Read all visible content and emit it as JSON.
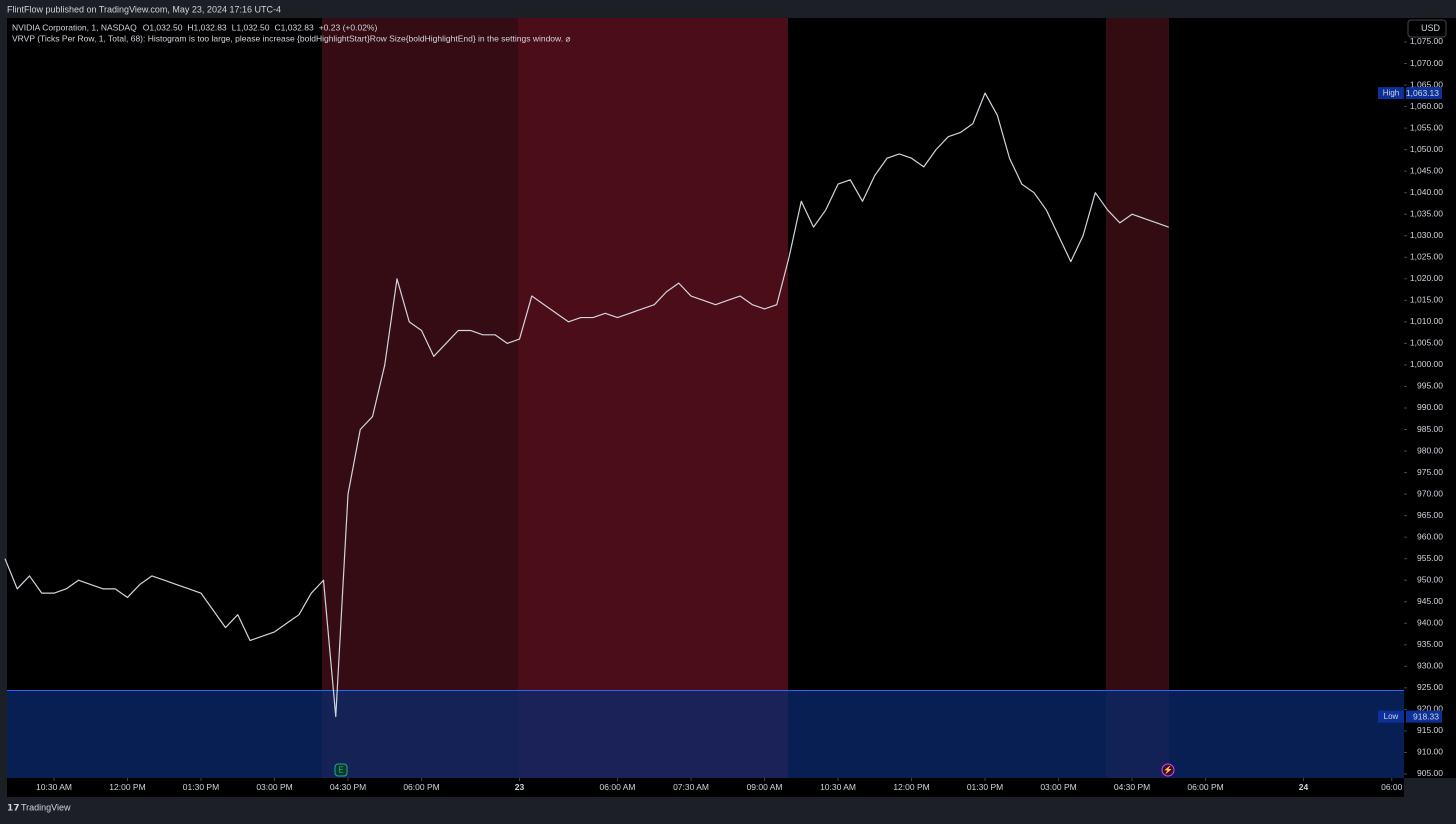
{
  "header": {
    "publisher": "FlintFlow published on TradingView.com, May 23, 2024 17:16 UTC-4"
  },
  "legend": {
    "symbol": "NVIDIA Corporation, 1, NASDAQ",
    "ohlc": [
      "O1,032.50",
      "H1,032.83",
      "L1,032.50",
      "C1,032.83",
      "+0.23 (+0.02%)"
    ],
    "indicator": "VRVP (Ticks Per Row, 1, Total, 68): Histogram is too large, please increase {boldHighlightStart}Row Size{boldHighlightEnd} in the settings window.  ⌀"
  },
  "currency": "USD",
  "footer": {
    "brand": "TradingView"
  },
  "chart_data": {
    "type": "line",
    "series": [
      {
        "name": "NVIDIA Corporation",
        "color": "#d1d4dc",
        "values": [
          955,
          948,
          951,
          947,
          947,
          948,
          950,
          949,
          948,
          948,
          946,
          949,
          951,
          950,
          949,
          948,
          947,
          943,
          939,
          942,
          936,
          937,
          938,
          940,
          942,
          947,
          950,
          918.33,
          970,
          985,
          988,
          1000,
          1020,
          1010,
          1008,
          1002,
          1005,
          1008,
          1008,
          1007,
          1007,
          1005,
          1006,
          1016,
          1014,
          1012,
          1010,
          1011,
          1011,
          1012,
          1011,
          1012,
          1013,
          1014,
          1017,
          1019,
          1016,
          1015,
          1014,
          1015,
          1016,
          1014,
          1013,
          1014,
          1025,
          1038,
          1032,
          1036,
          1042,
          1043,
          1038,
          1044,
          1048,
          1049,
          1048,
          1046,
          1050,
          1053,
          1054,
          1056,
          1063.13,
          1058,
          1048,
          1042,
          1040,
          1036,
          1030,
          1024,
          1030,
          1040,
          1036,
          1033,
          1035,
          1034,
          1033,
          1032
        ]
      }
    ],
    "xlim": [
      0,
      114.2
    ],
    "xticks": [
      {
        "value": 4,
        "label": "10:30 AM"
      },
      {
        "value": 10,
        "label": "12:00 PM"
      },
      {
        "value": 16,
        "label": "01:30 PM"
      },
      {
        "value": 22,
        "label": "03:00 PM"
      },
      {
        "value": 28,
        "label": "04:30 PM"
      },
      {
        "value": 34,
        "label": "06:00 PM"
      },
      {
        "value": 42,
        "label": "23"
      },
      {
        "value": 50,
        "label": "06:00 AM"
      },
      {
        "value": 56,
        "label": "07:30 AM"
      },
      {
        "value": 62,
        "label": "09:00 AM"
      },
      {
        "value": 68,
        "label": "10:30 AM"
      },
      {
        "value": 74,
        "label": "12:00 PM"
      },
      {
        "value": 80,
        "label": "01:30 PM"
      },
      {
        "value": 86,
        "label": "03:00 PM"
      },
      {
        "value": 92,
        "label": "04:30 PM"
      },
      {
        "value": 98,
        "label": "06:00 PM"
      },
      {
        "value": 106,
        "label": "24"
      },
      {
        "value": 113.2,
        "label": "06:00"
      }
    ],
    "ylim": [
      904.07,
      1080.57
    ],
    "yticks": [
      {
        "value": 905,
        "label": "905.00"
      },
      {
        "value": 910,
        "label": "910.00"
      },
      {
        "value": 915,
        "label": "915.00"
      },
      {
        "value": 920,
        "label": "920.00"
      },
      {
        "value": 925,
        "label": "925.00"
      },
      {
        "value": 930,
        "label": "930.00"
      },
      {
        "value": 935,
        "label": "935.00"
      },
      {
        "value": 940,
        "label": "940.00"
      },
      {
        "value": 945,
        "label": "945.00"
      },
      {
        "value": 950,
        "label": "950.00"
      },
      {
        "value": 955,
        "label": "955.00"
      },
      {
        "value": 960,
        "label": "960.00"
      },
      {
        "value": 965,
        "label": "965.00"
      },
      {
        "value": 970,
        "label": "970.00"
      },
      {
        "value": 975,
        "label": "975.00"
      },
      {
        "value": 980,
        "label": "980.00"
      },
      {
        "value": 985,
        "label": "985.00"
      },
      {
        "value": 990,
        "label": "990.00"
      },
      {
        "value": 995,
        "label": "995.00"
      },
      {
        "value": 1000,
        "label": "1,000.00"
      },
      {
        "value": 1005,
        "label": "1,005.00"
      },
      {
        "value": 1010,
        "label": "1,010.00"
      },
      {
        "value": 1015,
        "label": "1,015.00"
      },
      {
        "value": 1020,
        "label": "1,020.00"
      },
      {
        "value": 1025,
        "label": "1,025.00"
      },
      {
        "value": 1030,
        "label": "1,030.00"
      },
      {
        "value": 1035,
        "label": "1,035.00"
      },
      {
        "value": 1040,
        "label": "1,040.00"
      },
      {
        "value": 1045,
        "label": "1,045.00"
      },
      {
        "value": 1050,
        "label": "1,050.00"
      },
      {
        "value": 1055,
        "label": "1,055.00"
      },
      {
        "value": 1060,
        "label": "1,060.00"
      },
      {
        "value": 1065,
        "label": "1,065.00"
      },
      {
        "value": 1070,
        "label": "1,070.00"
      },
      {
        "value": 1075,
        "label": "1,075.00"
      }
    ],
    "annotations": [
      {
        "text": "High",
        "value": 1063.13,
        "label": "1,063.13"
      },
      {
        "text": "Low",
        "value": 918.33,
        "label": "918.33"
      }
    ],
    "grid": false
  }
}
